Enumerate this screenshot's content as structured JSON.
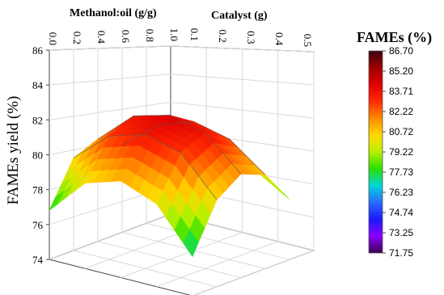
{
  "chart_data": {
    "type": "surface3d",
    "x_axis": {
      "label": "Methanol:oil (g/g)",
      "ticks": [
        "0.0",
        "0.2",
        "0.4",
        "0.6",
        "0.8",
        "1.0"
      ],
      "range": [
        0.0,
        1.0
      ]
    },
    "y_axis": {
      "label": "Catalyst (g)",
      "ticks": [
        "0.1",
        "0.2",
        "0.3",
        "0.4",
        "0.5"
      ],
      "range": [
        0.1,
        0.5
      ]
    },
    "z_axis": {
      "label": "FAMEs yield (%)",
      "ticks": [
        "74",
        "76",
        "78",
        "80",
        "82",
        "84",
        "86"
      ],
      "range": [
        74,
        86
      ]
    },
    "surface": {
      "x": [
        0.2,
        0.4,
        0.6,
        0.8,
        1.0
      ],
      "y": [
        0.1,
        0.2,
        0.3,
        0.4,
        0.5
      ],
      "z": [
        [
          77.7,
          79.3,
          80.2,
          79.8,
          78.3
        ],
        [
          80.2,
          82.3,
          83.2,
          82.6,
          80.7
        ],
        [
          81.3,
          83.6,
          84.3,
          83.7,
          81.4
        ],
        [
          80.6,
          82.8,
          83.6,
          82.9,
          80.2
        ],
        [
          77.5,
          80.1,
          80.9,
          79.9,
          76.8
        ]
      ]
    },
    "colorbar": {
      "title": "FAMEs (%)",
      "ticks": [
        "86.70",
        "85.20",
        "83.71",
        "82.22",
        "80.72",
        "79.22",
        "77.73",
        "76.23",
        "74.74",
        "73.25",
        "71.75"
      ],
      "min": 71.75,
      "max": 86.7,
      "colors": [
        "#3a0011",
        "#a00000",
        "#e00000",
        "#ff2a00",
        "#ff8a00",
        "#ffd800",
        "#b8f000",
        "#28e000",
        "#00d8d8",
        "#2a6aff",
        "#1a1aff",
        "#8a00ff",
        "#3a0050"
      ]
    },
    "grid": true,
    "legend_position": "right"
  }
}
